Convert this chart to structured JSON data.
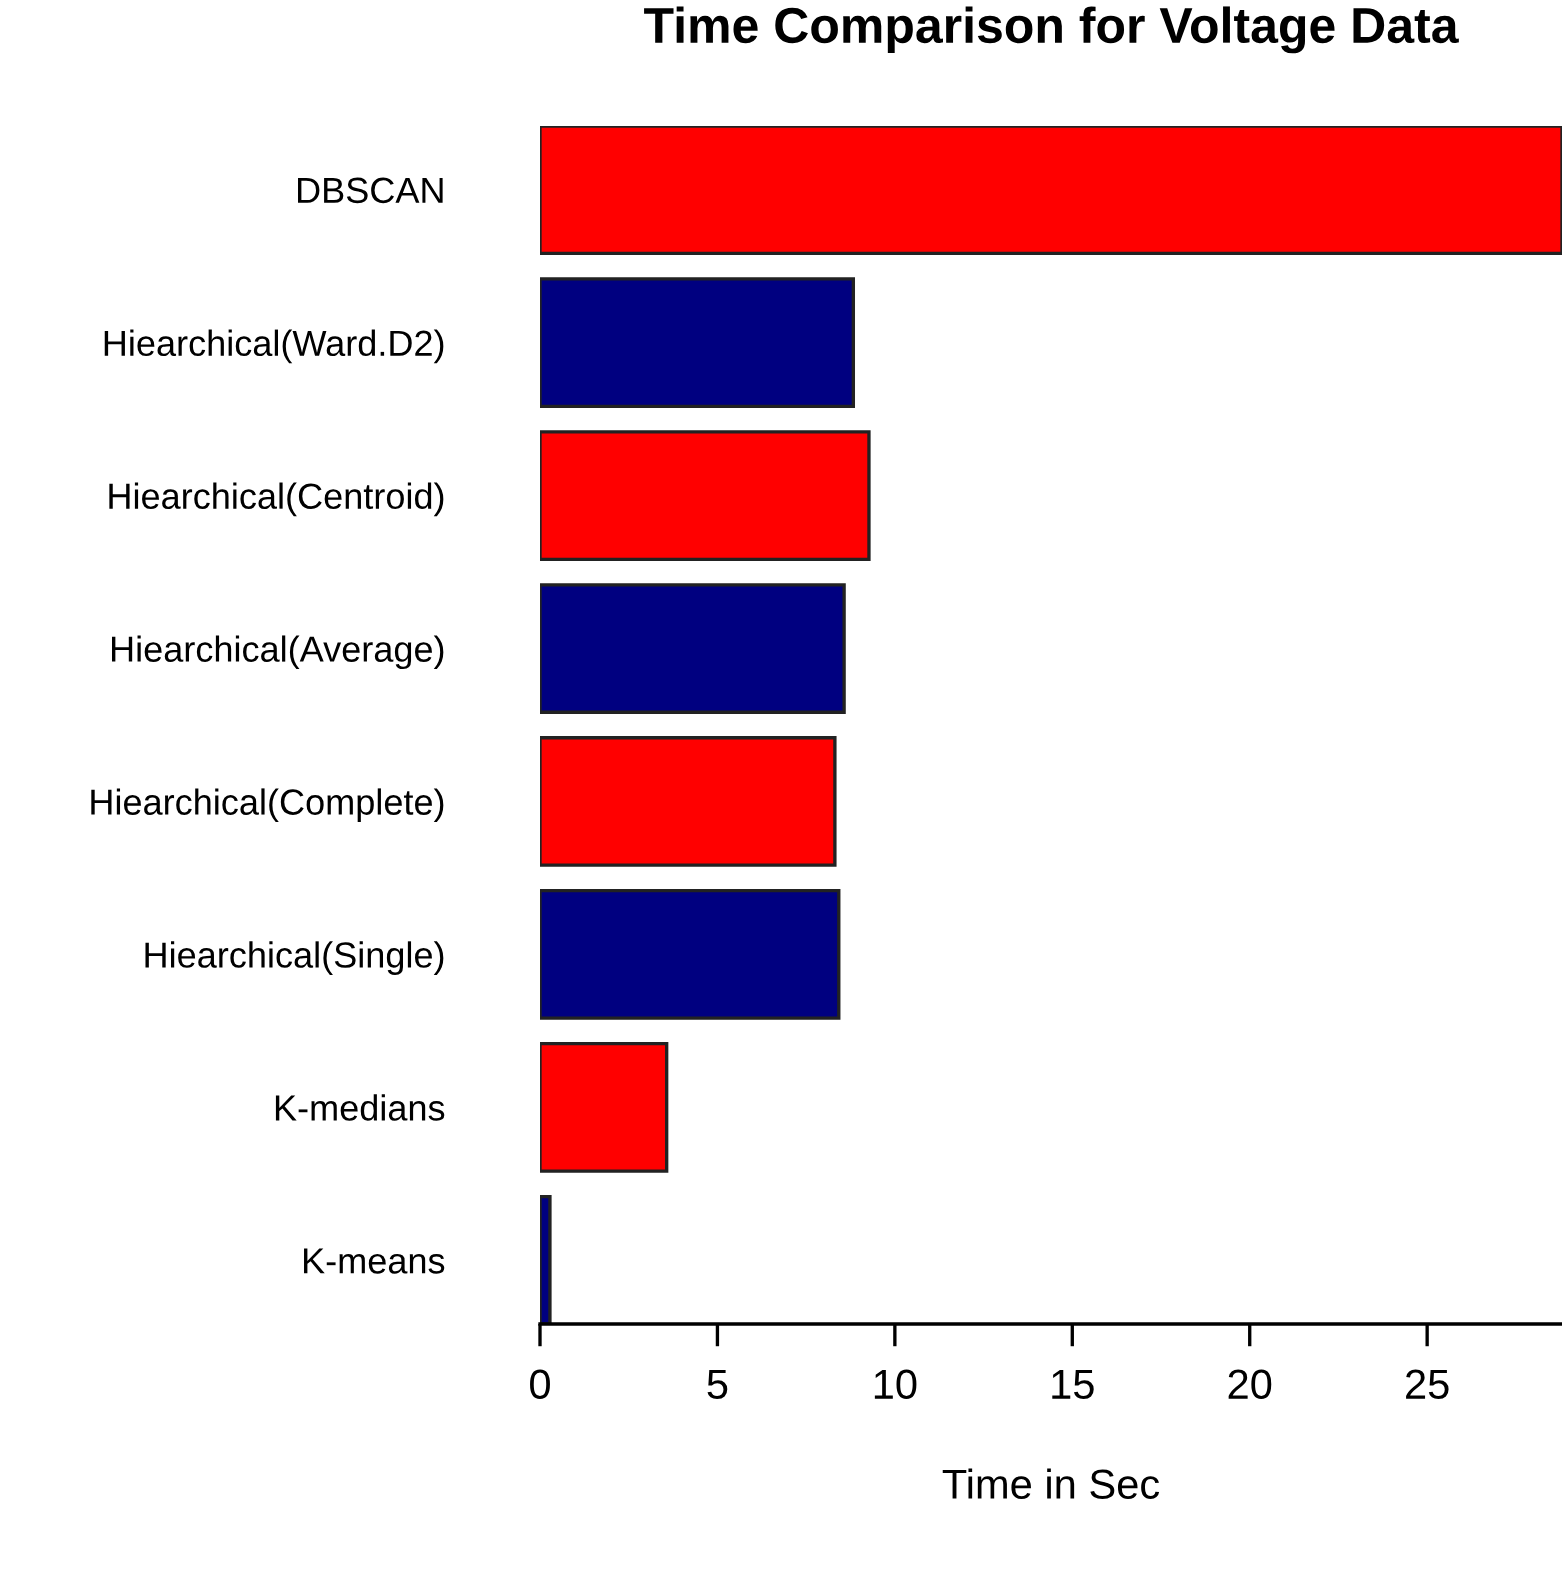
{
  "chart_data": {
    "type": "bar",
    "orientation": "horizontal",
    "title": "Time Comparison for Voltage Data",
    "xlabel": "Time in Sec",
    "categories": [
      "DBSCAN",
      "Hiearchical(Ward.D2)",
      "Hiearchical(Centroid)",
      "Hiearchical(Average)",
      "Hiearchical(Complete)",
      "Hiearchical(Single)",
      "K-medians",
      "K-means"
    ],
    "values": [
      28.8,
      8.83,
      9.27,
      8.57,
      8.31,
      8.42,
      3.57,
      0.28
    ],
    "colors": [
      "#ff0000",
      "#000080",
      "#ff0000",
      "#000080",
      "#ff0000",
      "#000080",
      "#ff0000",
      "#000080"
    ],
    "xlim": [
      0,
      28.8
    ],
    "xticks": [
      0,
      5,
      10,
      15,
      20,
      25
    ],
    "grid": false,
    "legend": false
  }
}
